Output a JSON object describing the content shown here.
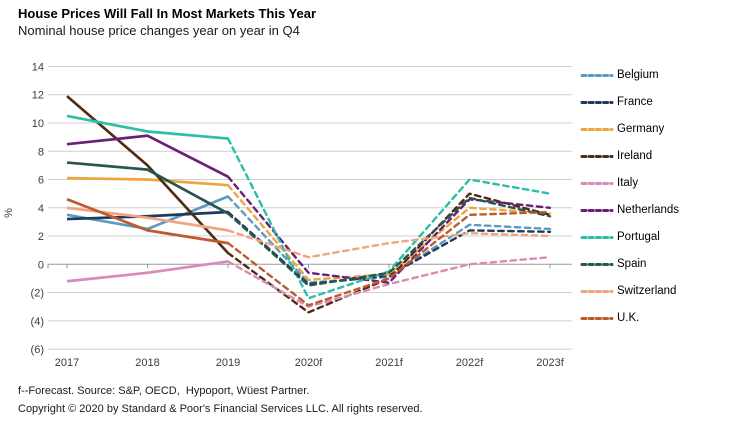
{
  "header": {
    "title": "House Prices Will Fall In Most Markets This Year",
    "subtitle": "Nominal house price changes year on year in Q4"
  },
  "footer": {
    "line1": "f--Forecast. Source: S&P, OECD,  Hypoport, Wüest Partner.",
    "line2": "Copyright © 2020 by Standard & Poor's Financial Services LLC. All rights reserved."
  },
  "chart_data": {
    "type": "line",
    "title": "House Prices Will Fall In Most Markets This Year",
    "subtitle": "Nominal house price changes year on year in Q4",
    "xlabel": "",
    "ylabel": "%",
    "ylim": [
      -6,
      14
    ],
    "ytick_step": 2,
    "grid": true,
    "legend_position": "right",
    "line_style_note": "solid 2017-2019 historical, dashed 2019-2023f forecast",
    "solid_until_index": 2,
    "categories": [
      "2017",
      "2018",
      "2019",
      "2020f",
      "2021f",
      "2022f",
      "2023f"
    ],
    "yticks": [
      {
        "value": 14,
        "label": "14"
      },
      {
        "value": 12,
        "label": "12"
      },
      {
        "value": 10,
        "label": "10"
      },
      {
        "value": 8,
        "label": "8"
      },
      {
        "value": 6,
        "label": "6"
      },
      {
        "value": 4,
        "label": "4"
      },
      {
        "value": 2,
        "label": "2"
      },
      {
        "value": 0,
        "label": "0"
      },
      {
        "value": -2,
        "label": "(2)"
      },
      {
        "value": -4,
        "label": "(4)"
      },
      {
        "value": -6,
        "label": "(6)"
      }
    ],
    "series": [
      {
        "name": "Belgium",
        "color": "#5B9BC0",
        "values": [
          3.5,
          2.5,
          4.8,
          -1.3,
          -0.9,
          2.8,
          2.5
        ]
      },
      {
        "name": "France",
        "color": "#1E3A5F",
        "values": [
          3.2,
          3.4,
          3.7,
          -1.4,
          -0.8,
          2.4,
          2.3
        ]
      },
      {
        "name": "Germany",
        "color": "#EFA43E",
        "values": [
          6.1,
          6.0,
          5.6,
          -1.1,
          -0.7,
          4.0,
          3.6
        ]
      },
      {
        "name": "Ireland",
        "color": "#4F2D15",
        "values": [
          11.9,
          7.0,
          0.8,
          -3.4,
          -1.0,
          5.0,
          3.5
        ]
      },
      {
        "name": "Italy",
        "color": "#D98BB8",
        "values": [
          -1.2,
          -0.6,
          0.2,
          -3.0,
          -1.4,
          0.0,
          0.5
        ]
      },
      {
        "name": "Netherlands",
        "color": "#6B2077",
        "values": [
          8.5,
          9.1,
          6.2,
          -0.6,
          -1.3,
          4.6,
          4.0
        ]
      },
      {
        "name": "Portugal",
        "color": "#2BBFA4",
        "values": [
          10.5,
          9.4,
          8.9,
          -2.4,
          -0.5,
          6.0,
          5.0
        ]
      },
      {
        "name": "Spain",
        "color": "#26564F",
        "values": [
          7.2,
          6.7,
          3.6,
          -1.5,
          -0.6,
          4.7,
          3.4
        ]
      },
      {
        "name": "Switzerland",
        "color": "#F2A481",
        "values": [
          4.0,
          3.3,
          2.4,
          0.5,
          1.5,
          2.2,
          2.0
        ]
      },
      {
        "name": "U.K.",
        "color": "#BE5A2E",
        "values": [
          4.6,
          2.4,
          1.5,
          -2.9,
          -1.0,
          3.5,
          3.7
        ]
      }
    ]
  }
}
